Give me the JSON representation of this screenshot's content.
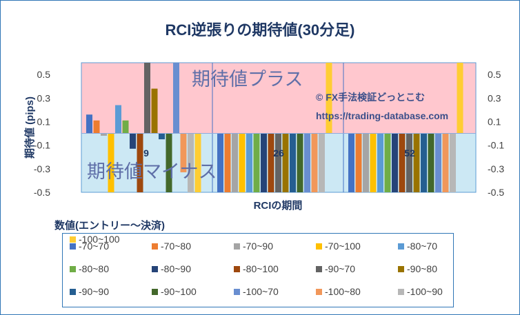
{
  "chart_data": {
    "type": "bar",
    "title": "RCI逆張りの期待値(30分足)",
    "xlabel": "RCIの期間",
    "ylabel": "期待値 (pips)",
    "ylim": [
      -0.5,
      0.6
    ],
    "yticks": [
      "0.5",
      "0.3",
      "0.1",
      "-0.1",
      "-0.3",
      "-0.5"
    ],
    "ytick_values": [
      0.5,
      0.3,
      0.1,
      -0.1,
      -0.3,
      -0.5
    ],
    "categories": [
      "9",
      "26",
      "52"
    ],
    "band_plus_label": "期待値プラス",
    "band_minus_label": "期待値マイナス",
    "credit_line1": "© FX手法検証どっとこむ",
    "credit_line2": "https://trading-database.com",
    "legend_title": "数値(エントリー～決済)",
    "series": [
      {
        "name": "-70~70",
        "color": "#4472c4",
        "values": [
          0.16,
          -0.5,
          -0.5
        ]
      },
      {
        "name": "-70~80",
        "color": "#ed7d31",
        "values": [
          0.11,
          -0.5,
          -0.5
        ]
      },
      {
        "name": "-70~90",
        "color": "#a5a5a5",
        "values": [
          -0.02,
          -0.5,
          -0.5
        ]
      },
      {
        "name": "-70~100",
        "color": "#ffc000",
        "values": [
          -0.5,
          -0.5,
          -0.5
        ]
      },
      {
        "name": "-80~70",
        "color": "#5b9bd5",
        "values": [
          0.24,
          -0.5,
          -0.5
        ]
      },
      {
        "name": "-80~80",
        "color": "#70ad47",
        "values": [
          0.11,
          -0.5,
          -0.5
        ]
      },
      {
        "name": "-80~90",
        "color": "#264478",
        "values": [
          -0.13,
          -0.5,
          -0.5
        ]
      },
      {
        "name": "-80~100",
        "color": "#9e480e",
        "values": [
          -0.5,
          -0.5,
          -0.5
        ]
      },
      {
        "name": "-90~70",
        "color": "#636363",
        "values": [
          0.63,
          -0.5,
          -0.5
        ]
      },
      {
        "name": "-90~80",
        "color": "#997300",
        "values": [
          0.38,
          -0.5,
          -0.5
        ]
      },
      {
        "name": "-90~90",
        "color": "#255e91",
        "values": [
          -0.05,
          -0.5,
          -0.5
        ]
      },
      {
        "name": "-90~100",
        "color": "#43682b",
        "values": [
          -0.5,
          -0.5,
          -0.5
        ]
      },
      {
        "name": "-100~70",
        "color": "#698ed0",
        "values": [
          0.65,
          -0.5,
          -0.5
        ]
      },
      {
        "name": "-100~80",
        "color": "#f1975a",
        "values": [
          -0.33,
          -0.5,
          -0.5
        ]
      },
      {
        "name": "-100~90",
        "color": "#b7b7b7",
        "values": [
          -0.5,
          -0.5,
          -0.5
        ]
      },
      {
        "name": "-100~100",
        "color": "#ffcd33",
        "values": [
          -0.5,
          0.65,
          0.65
        ]
      }
    ]
  }
}
